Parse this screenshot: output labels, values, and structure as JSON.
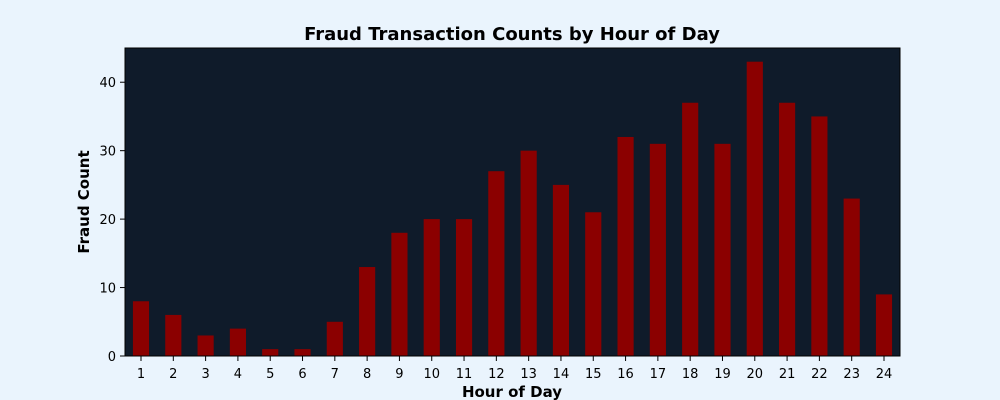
{
  "chart_data": {
    "type": "bar",
    "title": "Fraud Transaction Counts by Hour of Day",
    "xlabel": "Hour of Day",
    "ylabel": "Fraud Count",
    "categories": [
      "1",
      "2",
      "3",
      "4",
      "5",
      "6",
      "7",
      "8",
      "9",
      "10",
      "11",
      "12",
      "13",
      "14",
      "15",
      "16",
      "17",
      "18",
      "19",
      "20",
      "21",
      "22",
      "23",
      "24"
    ],
    "values": [
      8,
      6,
      3,
      4,
      1,
      1,
      5,
      13,
      18,
      20,
      20,
      27,
      30,
      25,
      21,
      32,
      31,
      37,
      31,
      43,
      37,
      35,
      23,
      9
    ],
    "ylim": [
      0,
      45
    ],
    "yticks": [
      0,
      10,
      20,
      30,
      40
    ],
    "grid": false,
    "colors": {
      "bar": "#8b0000",
      "plot_background": "#0f1b2a",
      "figure_background": "#eaf4fd"
    }
  }
}
